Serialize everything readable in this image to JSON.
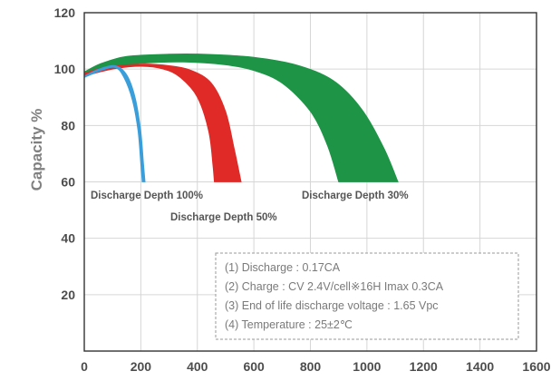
{
  "chart_data": {
    "type": "area",
    "title": "",
    "ylabel": "Capacity %",
    "xlabel": "",
    "xlim": [
      0,
      1600
    ],
    "ylim": [
      0,
      120
    ],
    "x_ticks": [
      "0",
      "200",
      "400",
      "600",
      "800",
      "1000",
      "1200",
      "1400",
      "1600"
    ],
    "y_ticks": [
      "20",
      "40",
      "60",
      "80",
      "100",
      "120"
    ],
    "x_tick_values": [
      0,
      200,
      400,
      600,
      800,
      1000,
      1200,
      1400,
      1600
    ],
    "y_tick_values": [
      20,
      40,
      60,
      80,
      100,
      120
    ],
    "grid": true,
    "series": [
      {
        "name": "Discharge Depth 30%",
        "color": "#1e9447",
        "upper": [
          [
            0,
            99
          ],
          [
            60,
            102
          ],
          [
            150,
            104.5
          ],
          [
            300,
            105.3
          ],
          [
            450,
            105.2
          ],
          [
            600,
            104.2
          ],
          [
            750,
            101.5
          ],
          [
            880,
            96
          ],
          [
            980,
            86
          ],
          [
            1060,
            72
          ],
          [
            1110,
            60
          ]
        ],
        "lower": [
          [
            0,
            98
          ],
          [
            80,
            100.5
          ],
          [
            200,
            102
          ],
          [
            350,
            102.5
          ],
          [
            500,
            101.5
          ],
          [
            600,
            99.5
          ],
          [
            700,
            95
          ],
          [
            800,
            85
          ],
          [
            860,
            73
          ],
          [
            900,
            60
          ]
        ]
      },
      {
        "name": "Discharge Depth 50%",
        "color": "#e02a27",
        "upper": [
          [
            0,
            98.5
          ],
          [
            80,
            100.8
          ],
          [
            200,
            101.8
          ],
          [
            300,
            101.2
          ],
          [
            380,
            99.5
          ],
          [
            450,
            95
          ],
          [
            500,
            85
          ],
          [
            530,
            72
          ],
          [
            555,
            60
          ]
        ],
        "lower": [
          [
            0,
            97.5
          ],
          [
            100,
            100
          ],
          [
            200,
            101
          ],
          [
            280,
            100
          ],
          [
            340,
            97
          ],
          [
            400,
            90
          ],
          [
            440,
            78
          ],
          [
            455,
            66
          ],
          [
            460,
            60
          ]
        ]
      },
      {
        "name": "Discharge Depth 100%",
        "color": "#3a9edb",
        "upper": [
          [
            0,
            97.5
          ],
          [
            50,
            100
          ],
          [
            110,
            101.2
          ],
          [
            150,
            98
          ],
          [
            180,
            90
          ],
          [
            200,
            78
          ],
          [
            210,
            66
          ],
          [
            215,
            60
          ]
        ],
        "lower": [
          [
            0,
            97
          ],
          [
            60,
            99.5
          ],
          [
            110,
            100.5
          ],
          [
            140,
            97
          ],
          [
            170,
            89
          ],
          [
            190,
            78
          ],
          [
            200,
            66
          ],
          [
            205,
            60
          ]
        ]
      }
    ],
    "annotations": [
      "(1) Discharge : 0.17CA",
      "(2) Charge : CV 2.4V/cell※16H Imax 0.3CA",
      "(3) End of life discharge voltage : 1.65 Vpc",
      "(4) Temperature : 25±2℃"
    ]
  }
}
